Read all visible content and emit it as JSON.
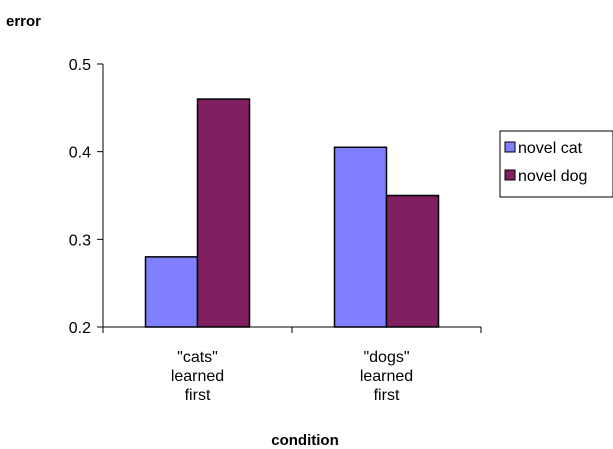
{
  "chart_data": {
    "type": "bar",
    "title": "",
    "ylabel": "error",
    "xlabel": "condition",
    "ylim": [
      0.2,
      0.5
    ],
    "yticks": [
      "0.2",
      "0.3",
      "0.4",
      "0.5"
    ],
    "categories": [
      [
        "\"cats\"",
        "learned",
        "first"
      ],
      [
        "\"dogs\"",
        "learned",
        "first"
      ]
    ],
    "series": [
      {
        "name": "novel cat",
        "color": "#8080ff",
        "values": [
          0.28,
          0.405
        ]
      },
      {
        "name": "novel dog",
        "color": "#802060",
        "values": [
          0.46,
          0.35
        ]
      }
    ],
    "grid": false,
    "legend_position": "right"
  }
}
